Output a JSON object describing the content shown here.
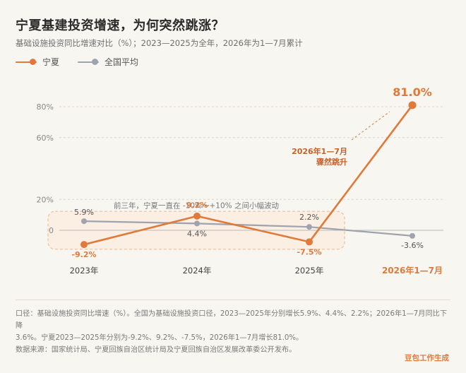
{
  "header": {
    "title": "宁夏基建投资增速，为何突然跳涨？",
    "subtitle": "基础设施投资同比增速对比（%）；2023—2025为全年，2026年为1—7月累计"
  },
  "legend": [
    {
      "label": "宁夏",
      "color": "#e07a3a"
    },
    {
      "label": "全国平均",
      "color": "#9ea3ad"
    }
  ],
  "chart_data": {
    "type": "line",
    "categories": [
      "2023年",
      "2024年",
      "2025年",
      "2026年1—7月"
    ],
    "series": [
      {
        "name": "宁夏",
        "color": "#e07a3a",
        "values": [
          -9.2,
          9.2,
          -7.5,
          81.0
        ],
        "labels": [
          "-9.2%",
          "9.2%",
          "-7.5%",
          "81.0%"
        ]
      },
      {
        "name": "全国平均",
        "color": "#9ea3ad",
        "values": [
          5.9,
          4.4,
          2.2,
          -3.6
        ],
        "labels": [
          "5.9%",
          "4.4%",
          "2.2%",
          "-3.6%"
        ]
      }
    ],
    "y_ticks": [
      0,
      20,
      60,
      80
    ],
    "y_tick_labels": [
      "0",
      "20%",
      "60%",
      "80%"
    ],
    "ylim": [
      -15,
      90
    ],
    "grid": true,
    "annotations": {
      "band_text": "前三年，宁夏一直在 -10%～+10% 之间小幅波动",
      "callout_line1": "2026年1—7月",
      "callout_line2": "骤然跳升"
    }
  },
  "footnote": {
    "line1": "口径：基础设施投资同比增速（%）。全国为基础设施投资口径，2023—2025年分别增长5.9%、4.4%、2.2%；2026年1—7月同比下降",
    "line2": "3.6%。宁夏2023—2025年分别为-9.2%、9.2%、-7.5%，2026年1—7月增长81.0%。",
    "line3": "数据来源：国家统计局、宁夏回族自治区统计局及宁夏回族自治区发展改革委公开发布。"
  },
  "brand": "豆包工作生成"
}
